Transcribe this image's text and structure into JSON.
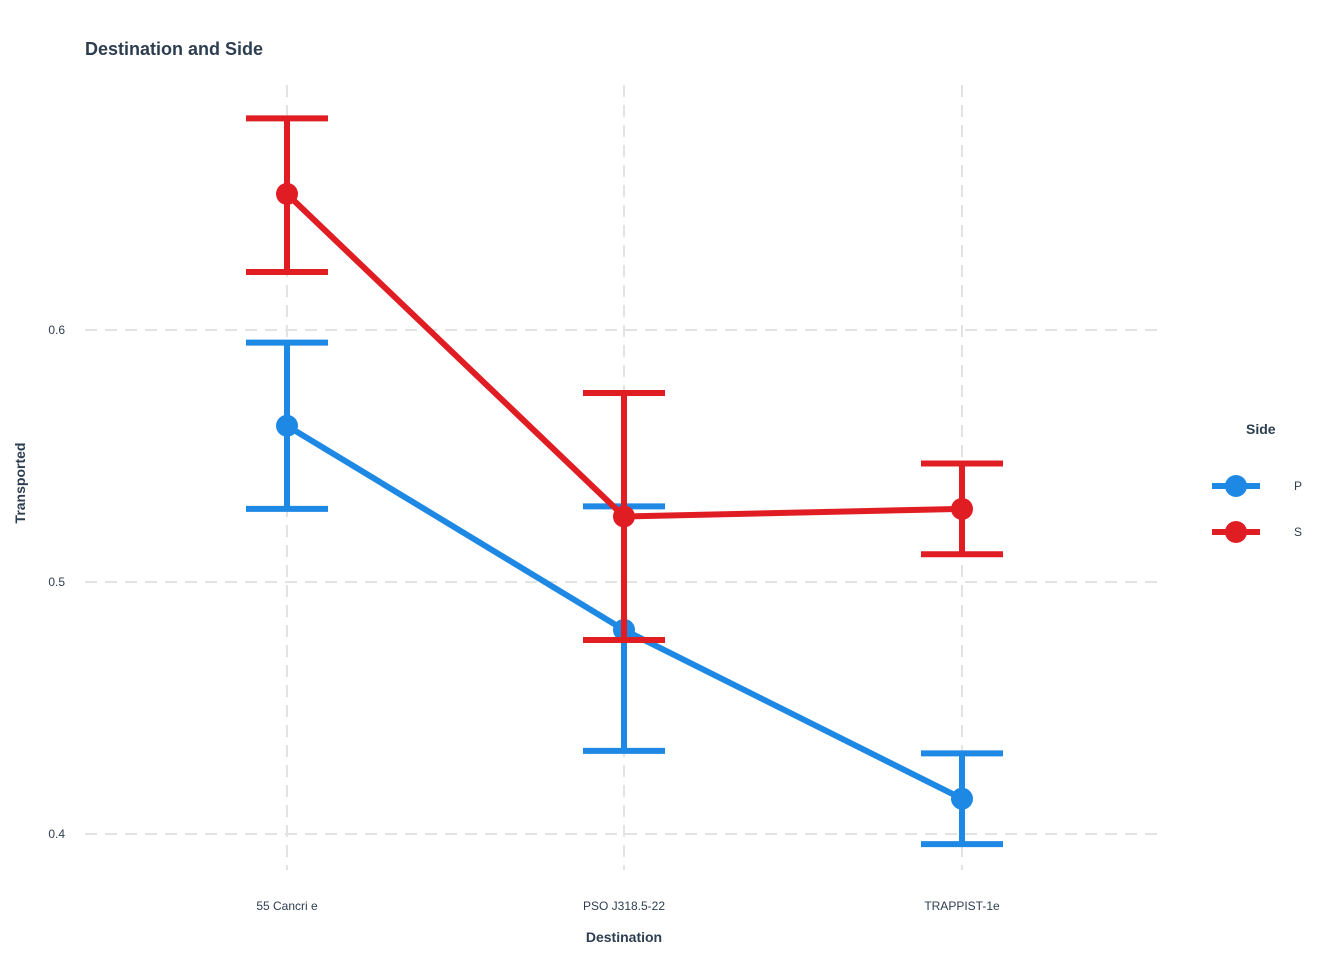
{
  "chart_data": {
    "type": "line",
    "title": "Destination and Side",
    "xlabel": "Destination",
    "ylabel": "Transported",
    "categories": [
      "55 Cancri e",
      "PSO J318.5-22",
      "TRAPPIST-1e"
    ],
    "ylim": [
      0.38,
      0.7
    ],
    "yticks": [
      0.4,
      0.5,
      0.6
    ],
    "ytick_labels": [
      "0.4",
      "0.5",
      "0.6"
    ],
    "grid": true,
    "error_bars": true,
    "legend": {
      "title": "Side",
      "placement": "right"
    },
    "series": [
      {
        "name": "P",
        "color": "#1e88e5",
        "values": [
          0.562,
          0.481,
          0.414
        ],
        "lower": [
          0.529,
          0.433,
          0.396
        ],
        "upper": [
          0.595,
          0.53,
          0.432
        ]
      },
      {
        "name": "S",
        "color": "#e11d24",
        "values": [
          0.654,
          0.526,
          0.529
        ],
        "lower": [
          0.623,
          0.477,
          0.511
        ],
        "upper": [
          0.684,
          0.575,
          0.547
        ]
      }
    ]
  }
}
